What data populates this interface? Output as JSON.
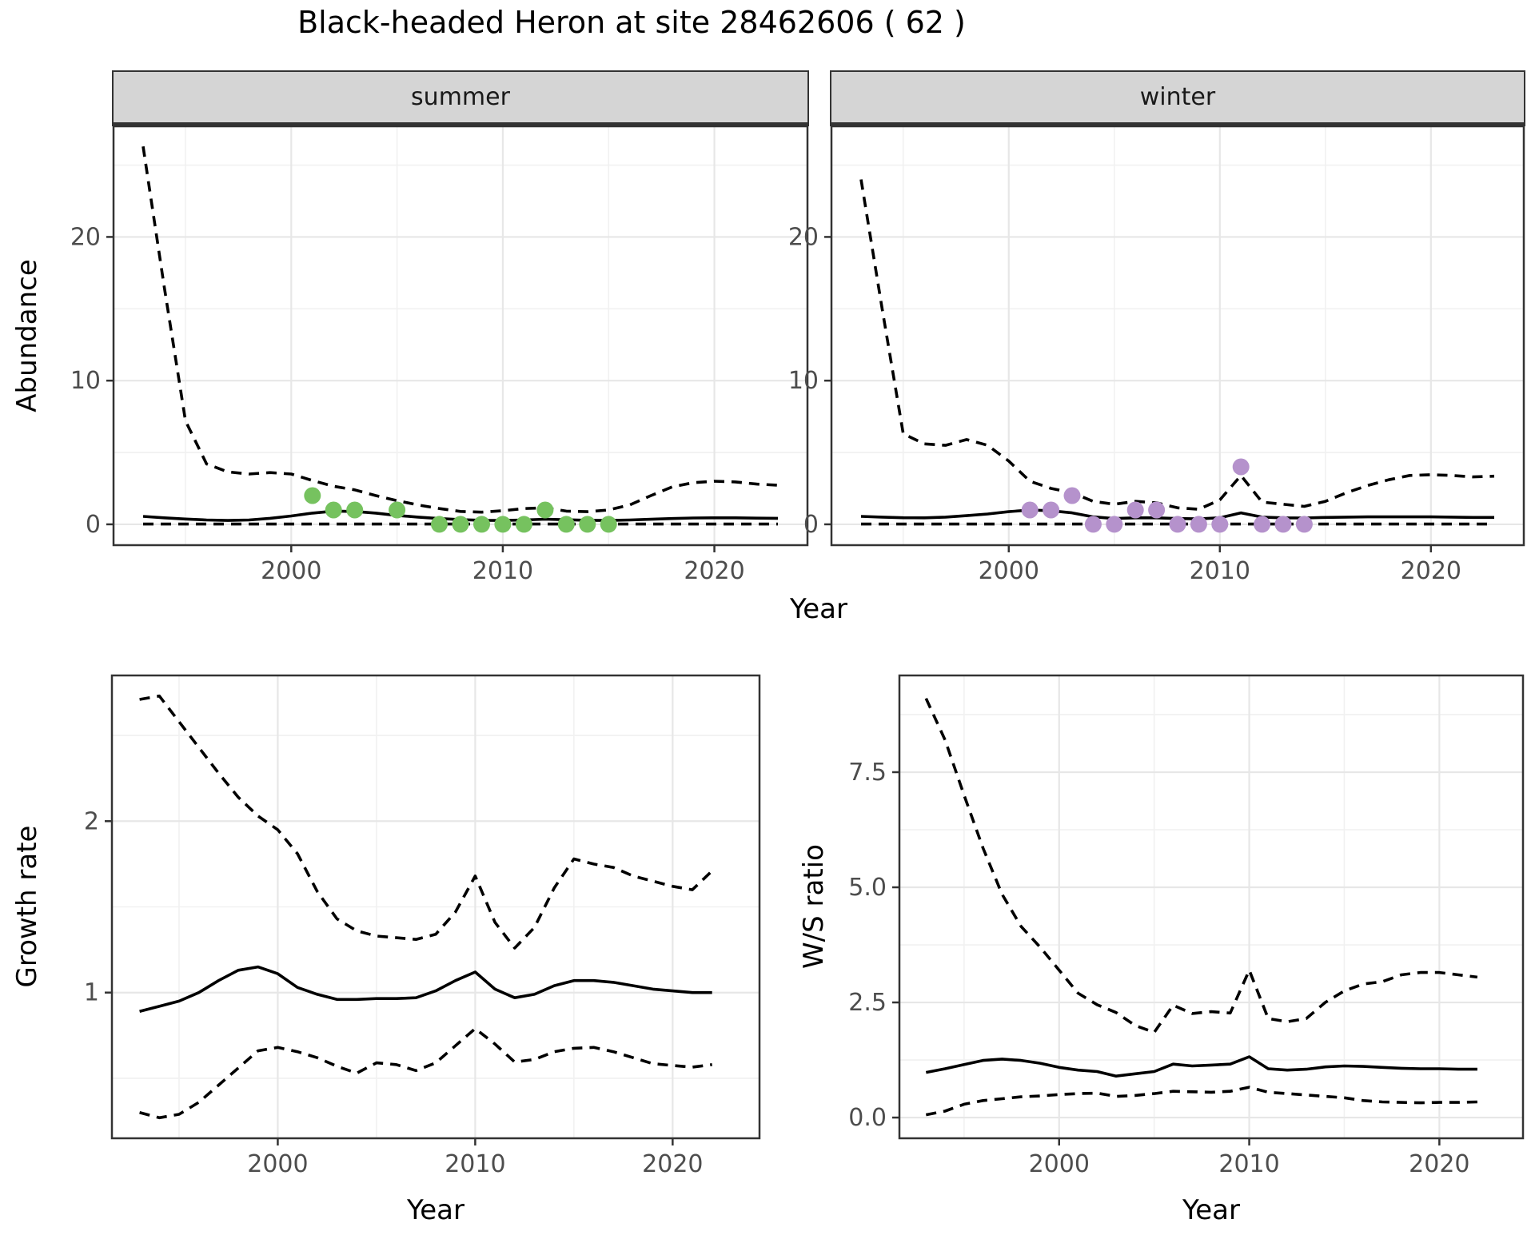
{
  "title": "Black-headed Heron at site 28462606 ( 62 )",
  "facets": [
    "summer",
    "winter"
  ],
  "axis_labels": {
    "x": "Year",
    "y_abundance": "Abundance",
    "y_growth": "Growth rate",
    "y_ws": "W/S ratio"
  },
  "colors": {
    "summer_point": "#76c25f",
    "winter_point": "#b592cc",
    "line": "#000000",
    "grid_major": "#e7e7e7",
    "grid_minor": "#f1f1f1",
    "panel_border": "#333333",
    "tick_mark": "#333333",
    "tick_text": "#4d4d4d",
    "strip_bg": "#d5d5d5"
  },
  "chart_data": [
    {
      "id": "abundance_summer",
      "type": "line",
      "facet": "summer",
      "xlabel": "Year",
      "ylabel": "Abundance",
      "xlim": [
        1991.6,
        2024.4
      ],
      "ylim": [
        -1.45,
        27.7
      ],
      "x_tick_values": [
        2000,
        2010,
        2020
      ],
      "x_tick_labels": [
        "2000",
        "2010",
        "2020"
      ],
      "x_minor": [
        1995,
        2005,
        2015
      ],
      "y_tick_values": [
        0,
        10,
        20
      ],
      "y_tick_labels": [
        "0",
        "10",
        "20"
      ],
      "y_minor": [
        5,
        15,
        25
      ],
      "x": [
        1993,
        1994,
        1995,
        1996,
        1997,
        1998,
        1999,
        2000,
        2001,
        2002,
        2003,
        2004,
        2005,
        2006,
        2007,
        2008,
        2009,
        2010,
        2011,
        2012,
        2013,
        2014,
        2015,
        2016,
        2017,
        2018,
        2019,
        2020,
        2021,
        2022,
        2023
      ],
      "series": [
        {
          "name": "upper_95ci",
          "style": "dashed",
          "values": [
            26.3,
            16.5,
            7.2,
            4.2,
            3.65,
            3.5,
            3.6,
            3.5,
            3.05,
            2.65,
            2.4,
            2.0,
            1.65,
            1.35,
            1.1,
            0.9,
            0.85,
            0.95,
            1.1,
            1.15,
            0.92,
            0.88,
            1.0,
            1.35,
            2.0,
            2.6,
            2.9,
            3.0,
            2.95,
            2.8,
            2.72
          ]
        },
        {
          "name": "median",
          "style": "solid",
          "values": [
            0.55,
            0.45,
            0.37,
            0.3,
            0.27,
            0.3,
            0.42,
            0.58,
            0.78,
            0.92,
            0.9,
            0.78,
            0.62,
            0.5,
            0.4,
            0.33,
            0.28,
            0.27,
            0.3,
            0.36,
            0.32,
            0.28,
            0.27,
            0.3,
            0.35,
            0.4,
            0.44,
            0.45,
            0.45,
            0.43,
            0.42
          ]
        },
        {
          "name": "lower_95ci",
          "style": "dashed",
          "values": [
            0.02,
            0.02,
            0.02,
            0.02,
            0.02,
            0.02,
            0.02,
            0.02,
            0.02,
            0.02,
            0.02,
            0.02,
            0.02,
            0.02,
            0.02,
            0.02,
            0.02,
            0.02,
            0.02,
            0.02,
            0.02,
            0.02,
            0.02,
            0.02,
            0.02,
            0.02,
            0.02,
            0.02,
            0.02,
            0.02,
            0.02
          ]
        }
      ],
      "points": {
        "name": "observed_counts_summer",
        "color_key": "summer_point",
        "x": [
          2001,
          2002,
          2003,
          2005,
          2007,
          2008,
          2009,
          2010,
          2011,
          2012,
          2013,
          2014,
          2015
        ],
        "y": [
          2,
          1,
          1,
          1,
          0,
          0,
          0,
          0,
          0,
          1,
          0,
          0,
          0
        ]
      }
    },
    {
      "id": "abundance_winter",
      "type": "line",
      "facet": "winter",
      "xlabel": "Year",
      "ylabel": "Abundance",
      "xlim": [
        1991.6,
        2024.4
      ],
      "ylim": [
        -1.45,
        27.7
      ],
      "x_tick_values": [
        2000,
        2010,
        2020
      ],
      "x_tick_labels": [
        "2000",
        "2010",
        "2020"
      ],
      "x_minor": [
        1995,
        2005,
        2015
      ],
      "y_tick_values": [
        0,
        10,
        20
      ],
      "y_tick_labels": [
        "0",
        "10",
        "20"
      ],
      "y_minor": [
        5,
        15,
        25
      ],
      "x": [
        1993,
        1994,
        1995,
        1996,
        1997,
        1998,
        1999,
        2000,
        2001,
        2002,
        2003,
        2004,
        2005,
        2006,
        2007,
        2008,
        2009,
        2010,
        2011,
        2012,
        2013,
        2014,
        2015,
        2016,
        2017,
        2018,
        2019,
        2020,
        2021,
        2022,
        2023
      ],
      "series": [
        {
          "name": "upper_95ci",
          "style": "dashed",
          "values": [
            24.0,
            15.0,
            6.3,
            5.6,
            5.5,
            5.9,
            5.5,
            4.4,
            3.0,
            2.5,
            2.2,
            1.6,
            1.4,
            1.6,
            1.5,
            1.15,
            1.05,
            1.7,
            3.4,
            1.55,
            1.4,
            1.25,
            1.6,
            2.2,
            2.7,
            3.1,
            3.4,
            3.45,
            3.4,
            3.3,
            3.35
          ]
        },
        {
          "name": "median",
          "style": "solid",
          "values": [
            0.55,
            0.5,
            0.46,
            0.45,
            0.5,
            0.6,
            0.72,
            0.88,
            1.0,
            0.95,
            0.8,
            0.52,
            0.4,
            0.45,
            0.45,
            0.4,
            0.38,
            0.45,
            0.8,
            0.5,
            0.45,
            0.44,
            0.48,
            0.5,
            0.52,
            0.52,
            0.52,
            0.52,
            0.5,
            0.48,
            0.48
          ]
        },
        {
          "name": "lower_95ci",
          "style": "dashed",
          "values": [
            0.02,
            0.02,
            0.02,
            0.02,
            0.02,
            0.02,
            0.02,
            0.02,
            0.02,
            0.02,
            0.02,
            0.02,
            0.02,
            0.02,
            0.02,
            0.02,
            0.02,
            0.02,
            0.02,
            0.02,
            0.02,
            0.02,
            0.02,
            0.02,
            0.02,
            0.02,
            0.02,
            0.02,
            0.02,
            0.02,
            0.02
          ]
        }
      ],
      "points": {
        "name": "observed_counts_winter",
        "color_key": "winter_point",
        "x": [
          2001,
          2002,
          2003,
          2004,
          2005,
          2006,
          2007,
          2008,
          2009,
          2010,
          2011,
          2012,
          2013,
          2014
        ],
        "y": [
          1,
          1,
          2,
          0,
          0,
          1,
          1,
          0,
          0,
          0,
          4,
          0,
          0,
          0
        ]
      }
    },
    {
      "id": "growth_rate",
      "type": "line",
      "facet": null,
      "xlabel": "Year",
      "ylabel": "Growth rate",
      "xlim": [
        1991.6,
        2024.4
      ],
      "ylim": [
        0.15,
        2.85
      ],
      "x_tick_values": [
        2000,
        2010,
        2020
      ],
      "x_tick_labels": [
        "2000",
        "2010",
        "2020"
      ],
      "x_minor": [
        1995,
        2005,
        2015
      ],
      "y_tick_values": [
        1,
        2
      ],
      "y_tick_labels": [
        "1",
        "2"
      ],
      "y_minor": [
        0.5,
        1.5,
        2.5
      ],
      "x": [
        1993,
        1994,
        1995,
        1996,
        1997,
        1998,
        1999,
        2000,
        2001,
        2002,
        2003,
        2004,
        2005,
        2006,
        2007,
        2008,
        2009,
        2010,
        2011,
        2012,
        2013,
        2014,
        2015,
        2016,
        2017,
        2018,
        2019,
        2020,
        2021,
        2022
      ],
      "series": [
        {
          "name": "upper_95ci",
          "style": "dashed",
          "values": [
            2.71,
            2.73,
            2.58,
            2.43,
            2.28,
            2.14,
            2.03,
            1.95,
            1.81,
            1.59,
            1.43,
            1.36,
            1.33,
            1.32,
            1.31,
            1.34,
            1.47,
            1.68,
            1.41,
            1.26,
            1.38,
            1.61,
            1.78,
            1.75,
            1.73,
            1.68,
            1.65,
            1.62,
            1.6,
            1.71
          ]
        },
        {
          "name": "median",
          "style": "solid",
          "values": [
            0.89,
            0.92,
            0.95,
            1.0,
            1.07,
            1.13,
            1.15,
            1.11,
            1.03,
            0.99,
            0.96,
            0.96,
            0.965,
            0.965,
            0.97,
            1.01,
            1.07,
            1.12,
            1.02,
            0.97,
            0.99,
            1.04,
            1.07,
            1.07,
            1.06,
            1.04,
            1.02,
            1.01,
            1.0,
            1.0
          ]
        },
        {
          "name": "lower_95ci",
          "style": "dashed",
          "values": [
            0.3,
            0.27,
            0.29,
            0.36,
            0.46,
            0.56,
            0.66,
            0.68,
            0.655,
            0.62,
            0.57,
            0.53,
            0.59,
            0.58,
            0.545,
            0.59,
            0.69,
            0.79,
            0.7,
            0.595,
            0.61,
            0.655,
            0.675,
            0.68,
            0.655,
            0.62,
            0.585,
            0.575,
            0.565,
            0.58
          ]
        }
      ],
      "points": null
    },
    {
      "id": "ws_ratio",
      "type": "line",
      "facet": null,
      "xlabel": "Year",
      "ylabel": "W/S ratio",
      "xlim": [
        1991.6,
        2024.4
      ],
      "ylim": [
        -0.45,
        9.6
      ],
      "x_tick_values": [
        2000,
        2010,
        2020
      ],
      "x_tick_labels": [
        "2000",
        "2010",
        "2020"
      ],
      "x_minor": [
        1995,
        2005,
        2015
      ],
      "y_tick_values": [
        0,
        2.5,
        5,
        7.5
      ],
      "y_tick_labels": [
        "0.0",
        "2.5",
        "5.0",
        "7.5"
      ],
      "y_minor": [
        1.25,
        3.75,
        6.25,
        8.75
      ],
      "x": [
        1993,
        1994,
        1995,
        1996,
        1997,
        1998,
        1999,
        2000,
        2001,
        2002,
        2003,
        2004,
        2005,
        2006,
        2007,
        2008,
        2009,
        2010,
        2011,
        2012,
        2013,
        2014,
        2015,
        2016,
        2017,
        2018,
        2019,
        2020,
        2021,
        2022
      ],
      "series": [
        {
          "name": "upper_95ci",
          "style": "dashed",
          "values": [
            9.1,
            8.2,
            7.0,
            5.85,
            4.85,
            4.15,
            3.7,
            3.2,
            2.7,
            2.45,
            2.28,
            2.0,
            1.85,
            2.44,
            2.26,
            2.3,
            2.27,
            3.2,
            2.15,
            2.08,
            2.15,
            2.5,
            2.75,
            2.9,
            2.95,
            3.1,
            3.15,
            3.15,
            3.1,
            3.05
          ]
        },
        {
          "name": "median",
          "style": "solid",
          "values": [
            0.98,
            1.06,
            1.15,
            1.24,
            1.27,
            1.24,
            1.18,
            1.09,
            1.03,
            1.0,
            0.9,
            0.95,
            1.0,
            1.16,
            1.12,
            1.14,
            1.16,
            1.32,
            1.06,
            1.03,
            1.05,
            1.1,
            1.12,
            1.11,
            1.09,
            1.07,
            1.06,
            1.06,
            1.05,
            1.05
          ]
        },
        {
          "name": "lower_95ci",
          "style": "dashed",
          "values": [
            0.06,
            0.14,
            0.29,
            0.37,
            0.41,
            0.45,
            0.47,
            0.5,
            0.52,
            0.53,
            0.46,
            0.48,
            0.52,
            0.57,
            0.56,
            0.55,
            0.57,
            0.66,
            0.55,
            0.52,
            0.49,
            0.46,
            0.43,
            0.37,
            0.34,
            0.33,
            0.32,
            0.33,
            0.33,
            0.34
          ]
        }
      ],
      "points": null
    }
  ]
}
